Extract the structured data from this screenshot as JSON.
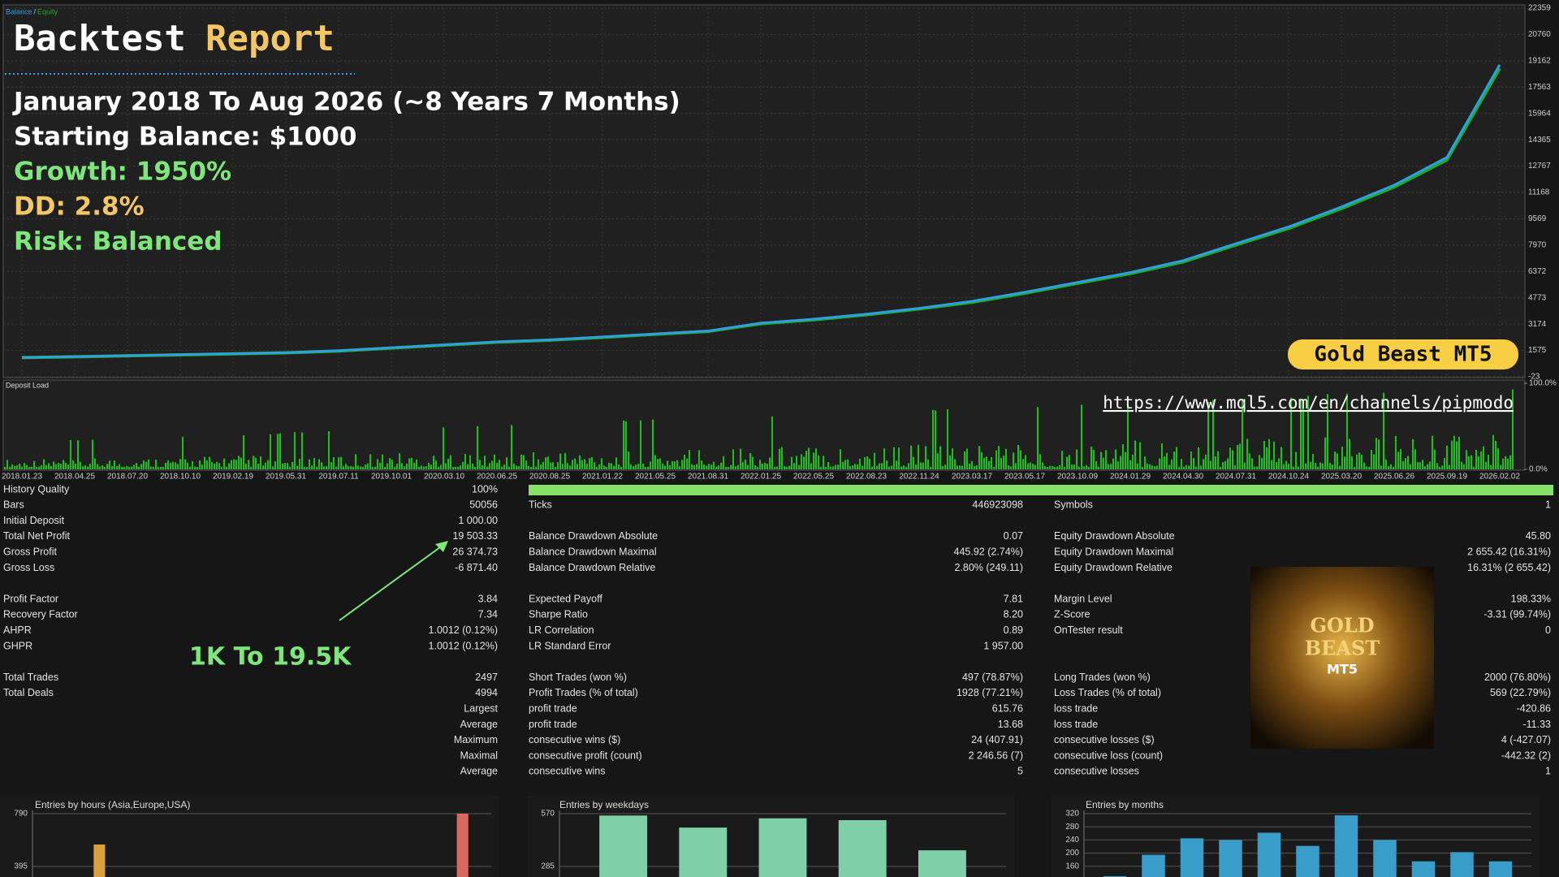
{
  "overlay": {
    "title_word_1": "Backtest",
    "title_word_2": "Report",
    "lines": [
      "January 2018 To Aug 2026 (~8 Years 7 Months)",
      "Starting Balance: $1000",
      "Growth: 1950%",
      "DD: 2.8%",
      "Risk: Balanced"
    ],
    "badge": "Gold Beast MT5",
    "url": "https://www.mql5.com/en/channels/pipmodo",
    "callout": "1K To 19.5K"
  },
  "chart_data": [
    {
      "type": "line",
      "legend_separator": "/",
      "categories": [
        "2018.01.23",
        "2018.04.25",
        "2018.07.20",
        "2018.10.10",
        "2019.02.19",
        "2019.05.31",
        "2019.07.11",
        "2019.10.01",
        "2020.03.10",
        "2020.06.25",
        "2020.08.25",
        "2021.01.22",
        "2021.05.25",
        "2021.08.31",
        "2022.01.25",
        "2022.05.25",
        "2022.08.23",
        "2022.11.24",
        "2023.03.17",
        "2023.05.17",
        "2023.10.09",
        "2024.01.29",
        "2024.04.30",
        "2024.07.31",
        "2024.10.24",
        "2025.03.20",
        "2025.06.26",
        "2025.09.19",
        "2026.02.02"
      ],
      "series": [
        {
          "name": "Balance",
          "color": "#2f9fe0",
          "values": [
            1150,
            1200,
            1260,
            1320,
            1380,
            1440,
            1560,
            1740,
            1920,
            2100,
            2220,
            2400,
            2580,
            2760,
            3240,
            3480,
            3780,
            4140,
            4560,
            5110,
            5710,
            6310,
            7030,
            8060,
            9080,
            10290,
            11610,
            13300,
            18920
          ]
        },
        {
          "name": "Equity",
          "color": "#22a822",
          "values": [
            1140,
            1190,
            1250,
            1310,
            1370,
            1430,
            1540,
            1720,
            1900,
            2080,
            2200,
            2370,
            2560,
            2730,
            3200,
            3440,
            3740,
            4100,
            4500,
            5050,
            5650,
            6240,
            6950,
            7980,
            8990,
            10190,
            11500,
            13150,
            18700
          ]
        }
      ],
      "ylim": [
        -23,
        22359
      ],
      "yticks": [
        -23,
        1575,
        3174,
        4773,
        6372,
        7970,
        9569,
        11168,
        12767,
        14365,
        15964,
        17563,
        19162,
        20760,
        22359
      ],
      "grid": true
    },
    {
      "type": "load",
      "title": "Deposit Load",
      "color": "#1fbf1f",
      "ylim": [
        0,
        100
      ],
      "yticks": [
        {
          "value": 0,
          "label": "0.0%"
        },
        {
          "value": 100,
          "label": "100.0%"
        }
      ]
    },
    {
      "type": "bar",
      "title": "Entries by hours (Asia,Europe,USA)",
      "x": [
        3,
        22
      ],
      "xlim": [
        0,
        24
      ],
      "values": [
        559,
        790
      ],
      "colors": [
        "#d9a040",
        "#d9685f"
      ],
      "ylim": [
        0,
        790
      ],
      "yticks": [
        395,
        790
      ]
    },
    {
      "type": "bar",
      "title": "Entries by weekdays",
      "values": [
        560,
        495,
        545,
        535,
        372
      ],
      "color": "#7fd0a8",
      "ylim": [
        0,
        570
      ],
      "yticks": [
        285,
        570
      ]
    },
    {
      "type": "bar",
      "title": "Entries by months",
      "values": [
        130,
        195,
        245,
        240,
        262,
        222,
        315,
        240,
        175,
        203,
        175
      ],
      "color": "#3a9cc8",
      "ylim": [
        120,
        320
      ],
      "yticks": [
        160,
        200,
        240,
        280,
        320
      ]
    }
  ],
  "report": {
    "history_quality": {
      "label": "History Quality",
      "value": "100%"
    },
    "groups": [
      [
        {
          "label1": "Bars",
          "value1": "50056",
          "label2": "Ticks",
          "value2": "446923098",
          "label3": "Symbols",
          "value3": "1"
        },
        {
          "label1": "Initial Deposit",
          "value1": "1 000.00"
        },
        {
          "label1": "Total Net Profit",
          "value1": "19 503.33",
          "label2": "Balance Drawdown Absolute",
          "value2": "0.07",
          "label3": "Equity Drawdown Absolute",
          "value3": "45.80"
        },
        {
          "label1": "Gross Profit",
          "value1": "26 374.73",
          "label2": "Balance Drawdown Maximal",
          "value2": "445.92 (2.74%)",
          "label3": "Equity Drawdown Maximal",
          "value3": "2 655.42 (16.31%)"
        },
        {
          "label1": "Gross Loss",
          "value1": "-6 871.40",
          "label2": "Balance Drawdown Relative",
          "value2": "2.80% (249.11)",
          "label3": "Equity Drawdown Relative",
          "value3": "16.31% (2 655.42)"
        }
      ],
      [
        {
          "label1": "Profit Factor",
          "value1": "3.84",
          "label2": "Expected Payoff",
          "value2": "7.81",
          "label3": "Margin Level",
          "value3": "198.33%"
        },
        {
          "label1": "Recovery Factor",
          "value1": "7.34",
          "label2": "Sharpe Ratio",
          "value2": "8.20",
          "label3": "Z-Score",
          "value3": "-3.31 (99.74%)"
        },
        {
          "label1": "AHPR",
          "value1": "1.0012 (0.12%)",
          "label2": "LR Correlation",
          "value2": "0.89",
          "label3": "OnTester result",
          "value3": "0"
        },
        {
          "label1": "GHPR",
          "value1": "1.0012 (0.12%)",
          "label2": "LR Standard Error",
          "value2": "1 957.00"
        }
      ],
      [
        {
          "label1": "Total Trades",
          "value1": "2497",
          "label2": "Short Trades (won %)",
          "value2": "497 (78.87%)",
          "label3": "Long Trades (won %)",
          "value3": "2000 (76.80%)"
        },
        {
          "label1": "Total Deals",
          "value1": "4994",
          "label2": "Profit Trades (% of total)",
          "value2": "1928 (77.21%)",
          "label3": "Loss Trades (% of total)",
          "value3": "569 (22.79%)"
        },
        {
          "value1": "Largest",
          "label2": "profit trade",
          "value2": "615.76",
          "label3": "loss trade",
          "value3": "-420.86"
        },
        {
          "value1": "Average",
          "label2": "profit trade",
          "value2": "13.68",
          "label3": "loss trade",
          "value3": "-11.33"
        },
        {
          "value1": "Maximum",
          "label2": "consecutive wins ($)",
          "value2": "24 (407.91)",
          "label3": "consecutive losses ($)",
          "value3": "4 (-427.07)"
        },
        {
          "value1": "Maximal",
          "label2": "consecutive profit (count)",
          "value2": "2 246.56 (7)",
          "label3": "consecutive loss (count)",
          "value3": "-442.32 (2)"
        },
        {
          "value1": "Average",
          "label2": "consecutive wins",
          "value2": "5",
          "label3": "consecutive losses",
          "value3": "1"
        }
      ]
    ],
    "product_image": [
      "GOLD",
      "BEAST",
      "MT5"
    ]
  }
}
